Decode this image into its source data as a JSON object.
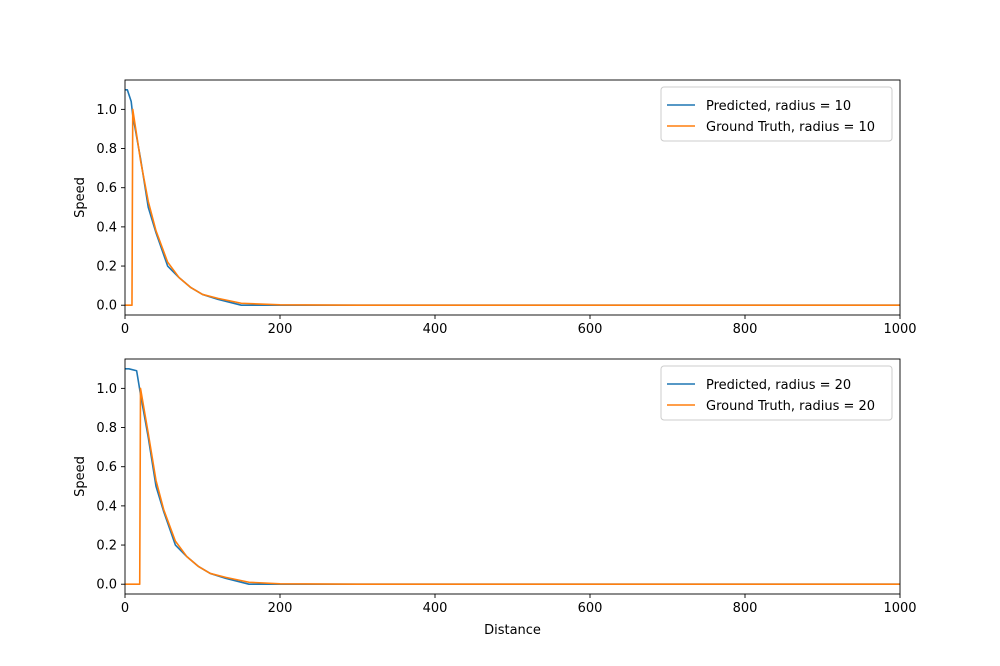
{
  "chart_data": [
    {
      "type": "line",
      "xlabel": "",
      "ylabel": "Speed",
      "xlim": [
        0,
        1000
      ],
      "ylim": [
        -0.05,
        1.15
      ],
      "xticks": [
        0,
        200,
        400,
        600,
        800,
        1000
      ],
      "yticks": [
        "0.0",
        "0.2",
        "0.4",
        "0.6",
        "0.8",
        "1.0"
      ],
      "grid": false,
      "legend_position": "top-right",
      "series": [
        {
          "name": "Predicted, radius = 10",
          "color": "#1f77b4",
          "x": [
            0,
            3,
            8,
            10,
            20,
            30,
            40,
            55,
            70,
            85,
            100,
            120,
            150,
            200,
            300,
            1000
          ],
          "y": [
            1.1,
            1.1,
            1.04,
            0.97,
            0.75,
            0.5,
            0.37,
            0.2,
            0.14,
            0.09,
            0.055,
            0.03,
            0.0,
            0.0,
            0.0,
            0.0
          ]
        },
        {
          "name": "Ground Truth, radius = 10",
          "color": "#ff7f0e",
          "x": [
            0,
            9,
            10,
            20,
            30,
            40,
            55,
            70,
            85,
            100,
            120,
            150,
            200,
            300,
            1000
          ],
          "y": [
            0.0,
            0.0,
            1.0,
            0.74,
            0.53,
            0.38,
            0.22,
            0.14,
            0.09,
            0.055,
            0.035,
            0.01,
            0.002,
            0.0,
            0.0
          ]
        }
      ]
    },
    {
      "type": "line",
      "xlabel": "Distance",
      "ylabel": "Speed",
      "xlim": [
        0,
        1000
      ],
      "ylim": [
        -0.05,
        1.15
      ],
      "xticks": [
        0,
        200,
        400,
        600,
        800,
        1000
      ],
      "yticks": [
        "0.0",
        "0.2",
        "0.4",
        "0.6",
        "0.8",
        "1.0"
      ],
      "grid": false,
      "legend_position": "top-right",
      "series": [
        {
          "name": "Predicted, radius = 20",
          "color": "#1f77b4",
          "x": [
            0,
            5,
            15,
            20,
            30,
            40,
            50,
            65,
            80,
            95,
            110,
            130,
            160,
            200,
            300,
            1000
          ],
          "y": [
            1.1,
            1.1,
            1.09,
            0.97,
            0.75,
            0.5,
            0.37,
            0.2,
            0.14,
            0.09,
            0.055,
            0.03,
            0.0,
            0.0,
            0.0,
            0.0
          ]
        },
        {
          "name": "Ground Truth, radius = 20",
          "color": "#ff7f0e",
          "x": [
            0,
            19,
            20,
            30,
            40,
            50,
            65,
            80,
            95,
            110,
            130,
            160,
            200,
            300,
            1000
          ],
          "y": [
            0.0,
            0.0,
            1.0,
            0.77,
            0.53,
            0.38,
            0.22,
            0.14,
            0.09,
            0.055,
            0.035,
            0.01,
            0.002,
            0.0,
            0.0
          ]
        }
      ]
    }
  ]
}
